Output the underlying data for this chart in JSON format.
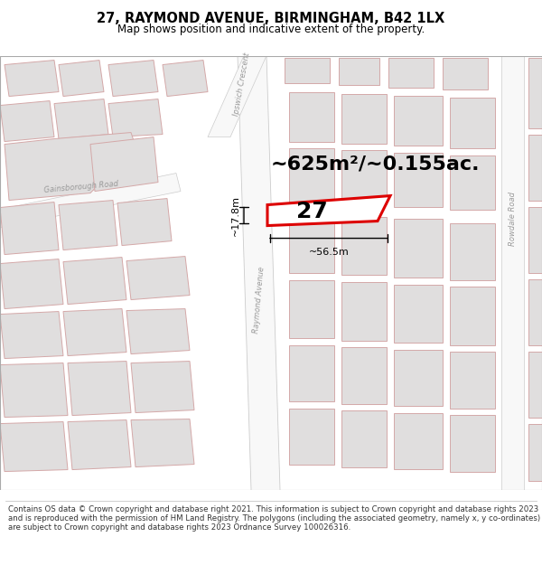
{
  "title_line1": "27, RAYMOND AVENUE, BIRMINGHAM, B42 1LX",
  "title_line2": "Map shows position and indicative extent of the property.",
  "area_label": "~625m²/~0.155ac.",
  "property_number": "27",
  "width_label": "~56.5m",
  "height_label": "~17.8m",
  "street_label": "Raymond Avenue",
  "road_label_left": "Gainsborough Road",
  "road_label_right": "Rowdale Road",
  "road_label_top": "Ipswich Crescent",
  "footer_text": "Contains OS data © Crown copyright and database right 2021. This information is subject to Crown copyright and database rights 2023 and is reproduced with the permission of HM Land Registry. The polygons (including the associated geometry, namely x, y co-ordinates) are subject to Crown copyright and database rights 2023 Ordnance Survey 100026316.",
  "map_bg": "#f7f4f0",
  "road_fill": "#ffffff",
  "road_edge": "#e8c0c0",
  "building_fill": "#e0dede",
  "building_edge": "#d4a8a8",
  "highlight_color": "#dd0000",
  "dim_color": "#000000",
  "text_color": "#000000",
  "road_text_color": "#888888",
  "footer_color": "#333333",
  "title_fontsize": 10.5,
  "subtitle_fontsize": 8.5,
  "area_fontsize": 16,
  "prop_num_fontsize": 18,
  "dim_fontsize": 8,
  "street_fontsize": 6,
  "footer_fontsize": 6.2
}
